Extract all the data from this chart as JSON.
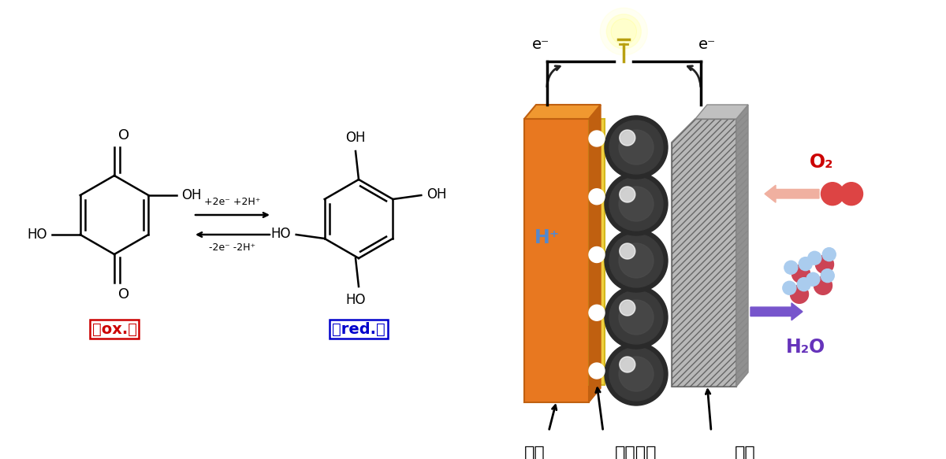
{
  "bg_color": "#ffffff",
  "ox_label": "「ox.」",
  "red_label": "「red.」",
  "ox_color": "#cc0000",
  "red_color": "#0000cc",
  "arrow_forward": "+2e⁻ +2H⁺",
  "arrow_backward": "-2e⁻ -2H⁺",
  "o2_label": "O₂",
  "o2_color": "#cc0000",
  "h2o_label": "H₂O",
  "h2o_color": "#6633bb",
  "neg_label": "負極",
  "elec_label": "電解質膜",
  "pos_label": "正極",
  "orange_color": "#e87820",
  "yellow_color": "#f0d040",
  "dark_gray": "#4a4a4a",
  "hatch_color": "#aaaaaa"
}
